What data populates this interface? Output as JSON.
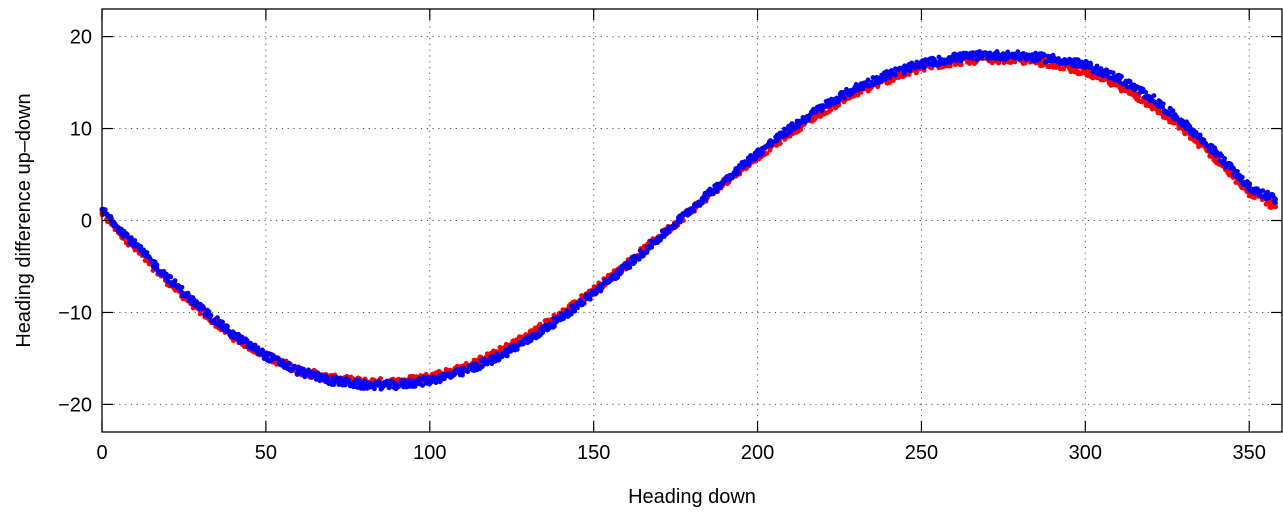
{
  "chart_data": {
    "type": "scatter",
    "xlabel": "Heading down",
    "ylabel": "Heading difference up–down",
    "xlim": [
      0,
      360
    ],
    "ylim": [
      -23,
      23
    ],
    "xticks": [
      0,
      50,
      100,
      150,
      200,
      250,
      300,
      350
    ],
    "yticks": [
      -20,
      -10,
      0,
      10,
      20
    ],
    "xtick_labels": [
      "0",
      "50",
      "100",
      "150",
      "200",
      "250",
      "300",
      "350"
    ],
    "ytick_labels": [
      "−20",
      "−10",
      "0",
      "10",
      "20"
    ],
    "grid": true,
    "grid_style": "dotted",
    "legend": "none",
    "series": [
      {
        "color": "#ff0000",
        "x": [
          0,
          10,
          20,
          30,
          40,
          50,
          60,
          70,
          80,
          90,
          100,
          110,
          120,
          130,
          140,
          150,
          160,
          170,
          180,
          190,
          200,
          210,
          220,
          230,
          240,
          250,
          260,
          270,
          280,
          290,
          300,
          310,
          320,
          330,
          340,
          350,
          358
        ],
        "y": [
          0.8,
          -3.0,
          -6.6,
          -9.8,
          -12.6,
          -14.7,
          -16.3,
          -17.2,
          -17.6,
          -17.6,
          -17.0,
          -16.1,
          -14.5,
          -12.5,
          -10.2,
          -7.6,
          -4.8,
          -1.8,
          1.2,
          4.2,
          7.0,
          9.6,
          11.9,
          13.9,
          15.4,
          16.6,
          17.3,
          17.6,
          17.5,
          17.1,
          16.2,
          14.7,
          12.6,
          9.9,
          6.7,
          3.1,
          1.5
        ]
      },
      {
        "color": "#0000ff",
        "x": [
          0,
          10,
          20,
          30,
          40,
          50,
          60,
          70,
          80,
          90,
          100,
          110,
          120,
          130,
          140,
          150,
          160,
          170,
          180,
          190,
          200,
          210,
          220,
          230,
          240,
          250,
          260,
          270,
          280,
          290,
          300,
          310,
          320,
          330,
          340,
          350,
          358
        ],
        "y": [
          1.2,
          -2.6,
          -6.2,
          -9.5,
          -12.4,
          -14.7,
          -16.4,
          -17.4,
          -17.9,
          -17.9,
          -17.4,
          -16.5,
          -15.0,
          -13.0,
          -10.6,
          -7.9,
          -5.0,
          -1.9,
          1.3,
          4.4,
          7.3,
          10.0,
          12.4,
          14.4,
          15.9,
          17.0,
          17.7,
          18.0,
          17.9,
          17.6,
          16.9,
          15.5,
          13.4,
          10.6,
          7.3,
          3.6,
          2.3
        ]
      }
    ]
  }
}
